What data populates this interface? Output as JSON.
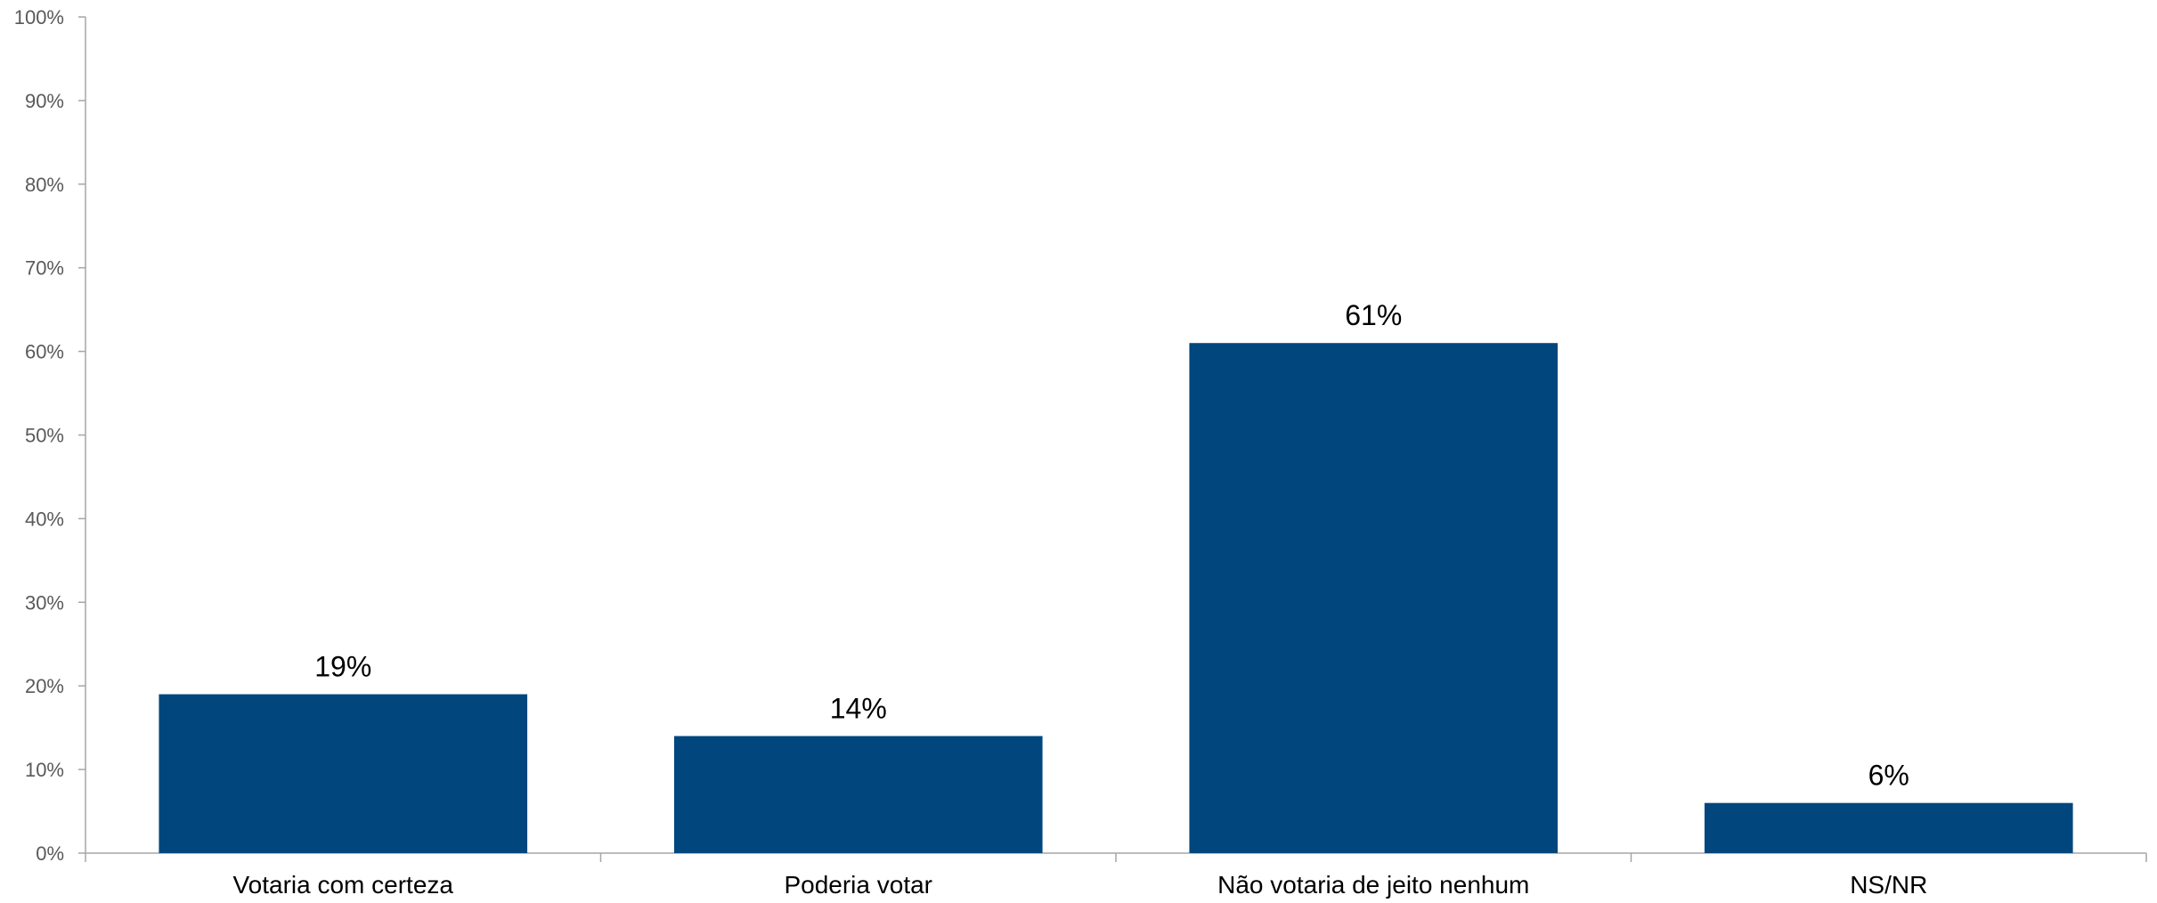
{
  "chart_data": {
    "type": "bar",
    "title": "",
    "xlabel": "",
    "ylabel": "",
    "categories": [
      "Votaria com certeza",
      "Poderia votar",
      "Não votaria de jeito nenhum",
      "NS/NR"
    ],
    "values": [
      19,
      14,
      61,
      6
    ],
    "data_labels": [
      "19%",
      "14%",
      "61%",
      "6%"
    ],
    "ylim": [
      0,
      100
    ],
    "y_ticks": [
      0,
      10,
      20,
      30,
      40,
      50,
      60,
      70,
      80,
      90,
      100
    ],
    "y_tick_labels": [
      "0%",
      "10%",
      "20%",
      "30%",
      "40%",
      "50%",
      "60%",
      "70%",
      "80%",
      "90%",
      "100%"
    ],
    "bar_color": "#02467e",
    "grid": false,
    "legend": "none"
  }
}
